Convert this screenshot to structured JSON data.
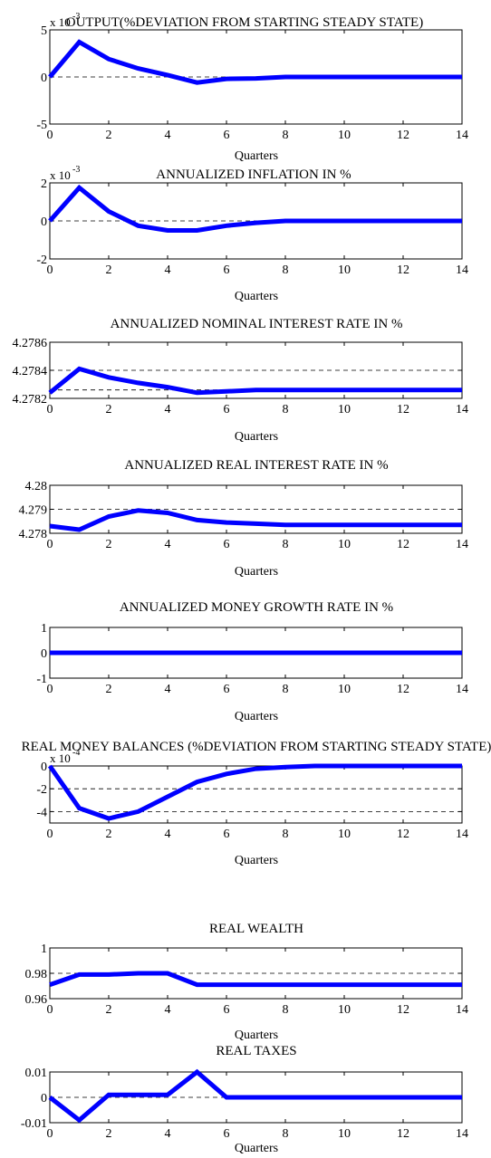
{
  "figure": {
    "xlabel": "Quarters",
    "xticks": [
      0,
      2,
      4,
      6,
      8,
      10,
      12,
      14
    ],
    "line_color": "#0000ff"
  },
  "chart_data": [
    {
      "type": "line",
      "title": "OUTPUT(%DEVIATION FROM STARTING STEADY STATE)",
      "xlabel": "Quarters",
      "multiplier": "x 10",
      "exponent": "-3",
      "x": [
        0,
        1,
        2,
        3,
        4,
        5,
        6,
        7,
        8,
        9,
        10,
        11,
        12,
        13,
        14
      ],
      "series": [
        {
          "values": [
            0,
            3.7,
            1.9,
            0.9,
            0.2,
            -0.6,
            -0.2,
            -0.15,
            0,
            0,
            0,
            0,
            0,
            0,
            0
          ]
        }
      ],
      "ylim": [
        -5,
        5
      ],
      "yticks": [
        "-5",
        "0",
        "5"
      ],
      "yticks_num": [
        -5,
        0,
        5
      ],
      "ref_lines": [
        0
      ]
    },
    {
      "type": "line",
      "title": "ANNUALIZED INFLATION IN %",
      "xlabel": "Quarters",
      "multiplier": "x 10",
      "exponent": "-3",
      "x": [
        0,
        1,
        2,
        3,
        4,
        5,
        6,
        7,
        8,
        9,
        10,
        11,
        12,
        13,
        14
      ],
      "series": [
        {
          "values": [
            0,
            1.75,
            0.5,
            -0.25,
            -0.5,
            -0.5,
            -0.25,
            -0.1,
            0,
            0,
            0,
            0,
            0,
            0,
            0
          ]
        }
      ],
      "ylim": [
        -2,
        2
      ],
      "yticks": [
        "-2",
        "0",
        "2"
      ],
      "yticks_num": [
        -2,
        0,
        2
      ],
      "ref_lines": [
        0
      ]
    },
    {
      "type": "line",
      "title": "ANNUALIZED NOMINAL INTEREST RATE IN %",
      "xlabel": "Quarters",
      "multiplier": "",
      "exponent": "",
      "x": [
        0,
        1,
        2,
        3,
        4,
        5,
        6,
        7,
        8,
        9,
        10,
        11,
        12,
        13,
        14
      ],
      "series": [
        {
          "values": [
            4.27824,
            4.27841,
            4.27835,
            4.27831,
            4.27828,
            4.27824,
            4.27825,
            4.27826,
            4.27826,
            4.27826,
            4.27826,
            4.27826,
            4.27826,
            4.27826,
            4.27826
          ]
        }
      ],
      "ylim": [
        4.2782,
        4.2786
      ],
      "yticks": [
        "4.2782",
        "4.2784",
        "4.2786"
      ],
      "yticks_num": [
        4.2782,
        4.2784,
        4.2786
      ],
      "ref_lines": [
        4.2784,
        4.27826
      ]
    },
    {
      "type": "line",
      "title": "ANNUALIZED REAL INTEREST RATE IN %",
      "xlabel": "Quarters",
      "multiplier": "",
      "exponent": "",
      "x": [
        0,
        1,
        2,
        3,
        4,
        5,
        6,
        7,
        8,
        9,
        10,
        11,
        12,
        13,
        14
      ],
      "series": [
        {
          "values": [
            4.2783,
            4.27815,
            4.2787,
            4.27895,
            4.27885,
            4.27855,
            4.27845,
            4.2784,
            4.27835,
            4.27835,
            4.27835,
            4.27835,
            4.27835,
            4.27835,
            4.27835
          ]
        }
      ],
      "ylim": [
        4.278,
        4.28
      ],
      "yticks": [
        "4.278",
        "4.279",
        "4.28"
      ],
      "yticks_num": [
        4.278,
        4.279,
        4.28
      ],
      "ref_lines": [
        4.279
      ]
    },
    {
      "type": "line",
      "title": "ANNUALIZED MONEY GROWTH RATE IN %",
      "xlabel": "Quarters",
      "multiplier": "",
      "exponent": "",
      "x": [
        0,
        1,
        2,
        3,
        4,
        5,
        6,
        7,
        8,
        9,
        10,
        11,
        12,
        13,
        14
      ],
      "series": [
        {
          "values": [
            0,
            0,
            0,
            0,
            0,
            0,
            0,
            0,
            0,
            0,
            0,
            0,
            0,
            0,
            0
          ]
        }
      ],
      "ylim": [
        -1,
        1
      ],
      "yticks": [
        "-1",
        "0",
        "1"
      ],
      "yticks_num": [
        -1,
        0,
        1
      ],
      "ref_lines": [
        0
      ]
    },
    {
      "type": "line",
      "title": "REAL MONEY BALANCES (%DEVIATION FROM STARTING STEADY STATE)",
      "xlabel": "Quarters",
      "multiplier": "x 10",
      "exponent": "-4",
      "x": [
        0,
        1,
        2,
        3,
        4,
        5,
        6,
        7,
        8,
        9,
        10,
        11,
        12,
        13,
        14
      ],
      "series": [
        {
          "values": [
            0,
            -3.7,
            -4.6,
            -4.0,
            -2.7,
            -1.4,
            -0.7,
            -0.25,
            -0.1,
            0,
            0,
            0,
            0,
            0,
            0
          ]
        }
      ],
      "ylim": [
        -5,
        0
      ],
      "yticks": [
        "-4",
        "-2",
        "0"
      ],
      "yticks_num": [
        -4,
        -2,
        0
      ],
      "ref_lines": [
        -2,
        -4
      ]
    },
    {
      "type": "line",
      "title": "REAL WEALTH",
      "xlabel": "Quarters",
      "multiplier": "",
      "exponent": "",
      "x": [
        0,
        1,
        2,
        3,
        4,
        5,
        6,
        7,
        8,
        9,
        10,
        11,
        12,
        13,
        14
      ],
      "series": [
        {
          "values": [
            0.971,
            0.979,
            0.979,
            0.98,
            0.98,
            0.971,
            0.971,
            0.971,
            0.971,
            0.971,
            0.971,
            0.971,
            0.971,
            0.971,
            0.971
          ]
        }
      ],
      "ylim": [
        0.96,
        1.0
      ],
      "yticks": [
        "0.96",
        "0.98",
        "1"
      ],
      "yticks_num": [
        0.96,
        0.98,
        1.0
      ],
      "ref_lines": [
        0.98
      ]
    },
    {
      "type": "line",
      "title": "REAL TAXES",
      "xlabel": "Quarters",
      "multiplier": "",
      "exponent": "",
      "x": [
        0,
        1,
        2,
        3,
        4,
        5,
        6,
        7,
        8,
        9,
        10,
        11,
        12,
        13,
        14
      ],
      "series": [
        {
          "values": [
            0,
            -0.009,
            0.001,
            0.001,
            0.001,
            0.01,
            0,
            0,
            0,
            0,
            0,
            0,
            0,
            0,
            0
          ]
        }
      ],
      "ylim": [
        -0.01,
        0.01
      ],
      "yticks": [
        "-0.01",
        "0",
        "0.01"
      ],
      "yticks_num": [
        -0.01,
        0,
        0.01
      ],
      "ref_lines": [
        0
      ]
    }
  ]
}
